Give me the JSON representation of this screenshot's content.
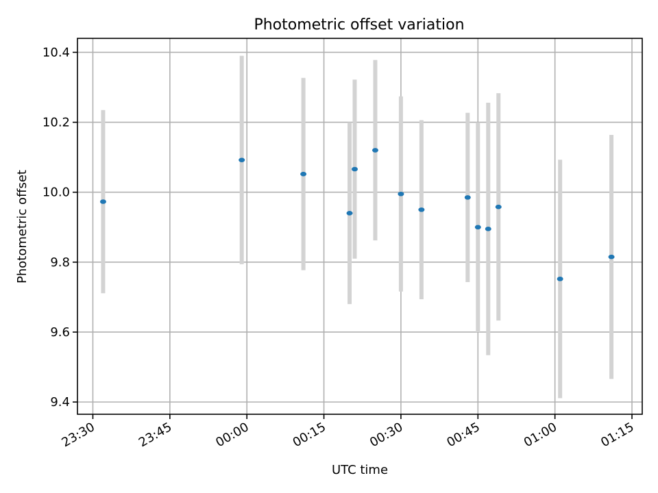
{
  "chart_data": {
    "type": "scatter",
    "title": "Photometric offset variation",
    "xlabel": "UTC time",
    "ylabel": "Photometric offset",
    "xlim": [
      "23:27",
      "01:17"
    ],
    "ylim": [
      9.365,
      10.44
    ],
    "grid": true,
    "x_ticks": [
      "23:30",
      "23:45",
      "00:00",
      "00:15",
      "00:30",
      "00:45",
      "01:00",
      "01:15"
    ],
    "y_ticks": [
      9.4,
      9.6,
      9.8,
      10.0,
      10.2,
      10.4
    ],
    "y_tick_labels": [
      "9.4",
      "9.6",
      "9.8",
      "10.0",
      "10.2",
      "10.4"
    ],
    "errorbar_color": "#d3d3d3",
    "marker_color": "#1f77b4",
    "points": [
      {
        "x": "23:32",
        "y": 9.973,
        "yerr": 0.262
      },
      {
        "x": "23:59",
        "y": 10.092,
        "yerr": 0.298
      },
      {
        "x": "00:11",
        "y": 10.052,
        "yerr": 0.275
      },
      {
        "x": "00:20",
        "y": 9.94,
        "yerr": 0.26
      },
      {
        "x": "00:21",
        "y": 10.066,
        "yerr": 0.256
      },
      {
        "x": "00:25",
        "y": 10.12,
        "yerr": 0.258
      },
      {
        "x": "00:30",
        "y": 9.995,
        "yerr": 0.279
      },
      {
        "x": "00:34",
        "y": 9.95,
        "yerr": 0.256
      },
      {
        "x": "00:43",
        "y": 9.985,
        "yerr": 0.242
      },
      {
        "x": "00:45",
        "y": 9.9,
        "yerr": 0.3
      },
      {
        "x": "00:47",
        "y": 9.895,
        "yerr": 0.361
      },
      {
        "x": "00:49",
        "y": 9.958,
        "yerr": 0.325
      },
      {
        "x": "01:01",
        "y": 9.752,
        "yerr": 0.341
      },
      {
        "x": "01:11",
        "y": 9.815,
        "yerr": 0.349
      }
    ]
  }
}
